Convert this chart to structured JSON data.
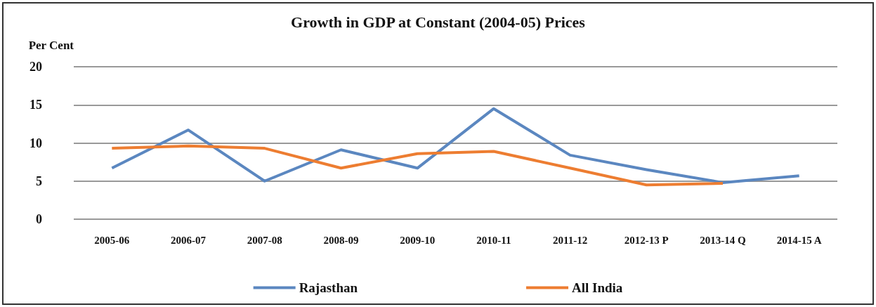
{
  "chart_data": {
    "type": "line",
    "title": "Growth in GDP at Constant (2004-05) Prices",
    "ylabel": "Per Cent",
    "categories": [
      "2005-06",
      "2006-07",
      "2007-08",
      "2008-09",
      "2009-10",
      "2010-11",
      "2011-12",
      "2012-13 P",
      "2013-14 Q",
      "2014-15 A"
    ],
    "series": [
      {
        "name": "Rajasthan",
        "color": "#5b87c0",
        "values": [
          6.7,
          11.7,
          5.0,
          9.1,
          6.7,
          14.5,
          8.4,
          6.5,
          4.8,
          5.7
        ]
      },
      {
        "name": "All India",
        "color": "#ed7d31",
        "values": [
          9.3,
          9.6,
          9.3,
          6.7,
          8.6,
          8.9,
          6.7,
          4.5,
          4.7,
          null
        ]
      }
    ],
    "ylim": [
      0,
      20
    ],
    "yticks": [
      0,
      5,
      10,
      15,
      20
    ],
    "grid": "y",
    "legend": "bottom",
    "marker": "none",
    "line_style": "solid"
  }
}
